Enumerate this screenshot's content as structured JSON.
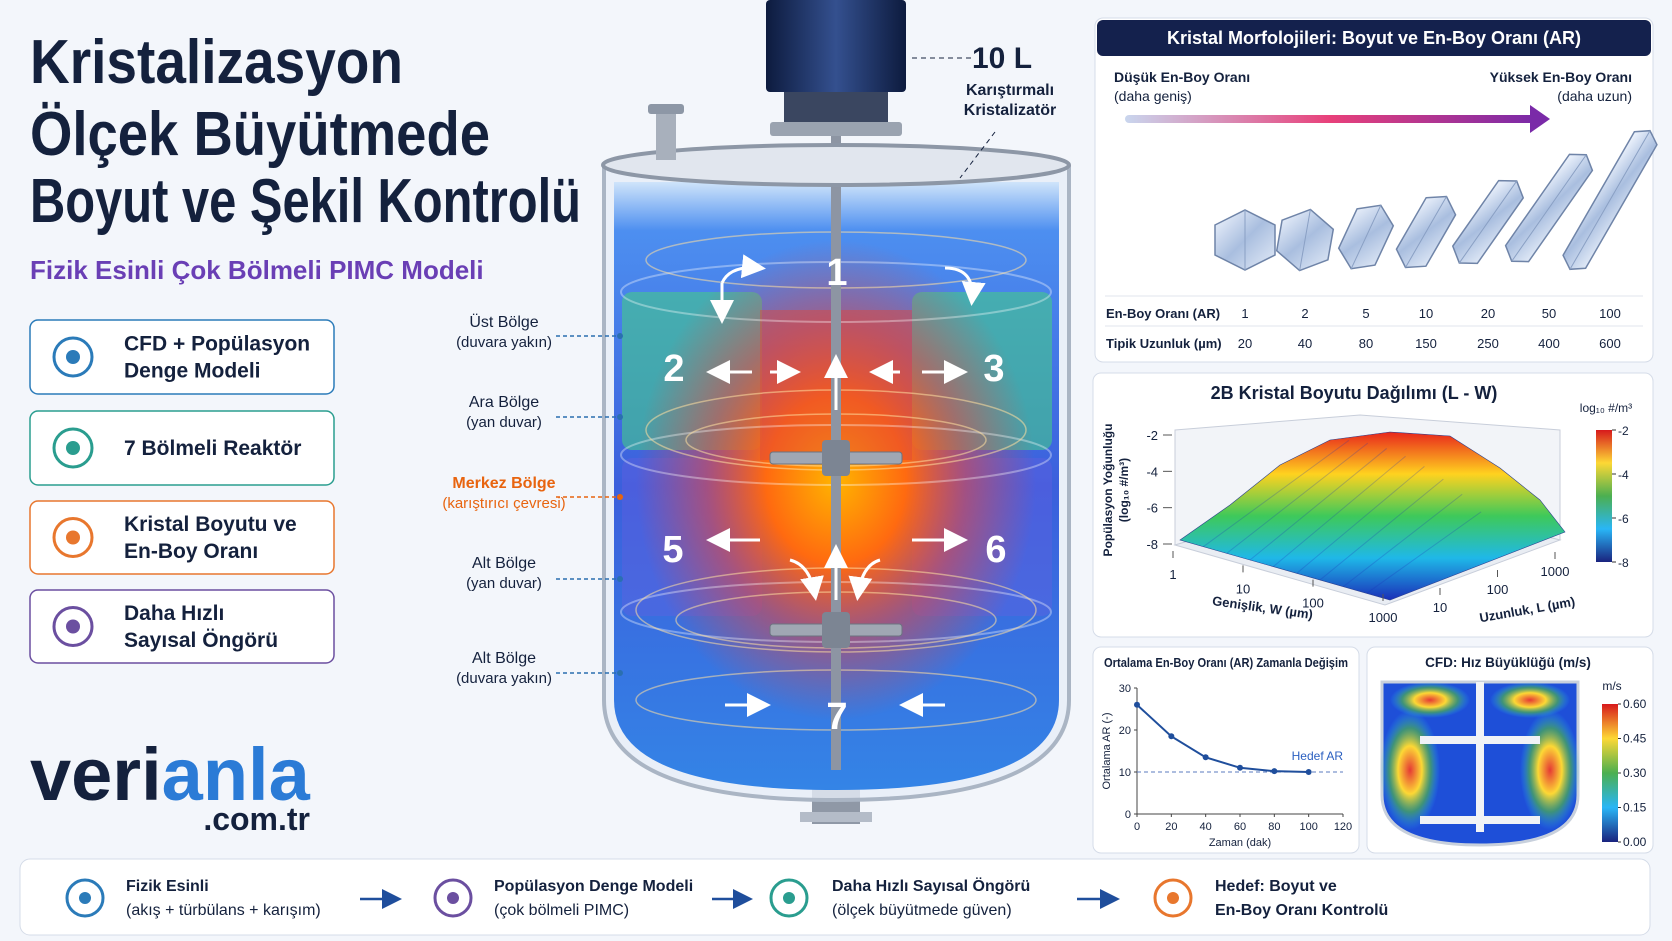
{
  "header": {
    "title_lines": [
      "Kristalizasyon",
      "Ölçek Büyütmede",
      "Boyut ve Şekil Kontrolü"
    ],
    "subtitle": "Fizik Esinli Çok Bölmeli PIMC Modeli"
  },
  "features": [
    {
      "lines": [
        "CFD + Popülasyon",
        "Denge Modeli"
      ]
    },
    {
      "lines": [
        "7 Bölmeli Reaktör"
      ]
    },
    {
      "lines": [
        "Kristal Boyutu ve",
        "En-Boy Oranı"
      ]
    },
    {
      "lines": [
        "Daha Hızlı",
        "Sayısal Öngörü"
      ]
    }
  ],
  "logo": {
    "part1": "veri",
    "part2": "anla",
    "domain": ".com.tr"
  },
  "reactor": {
    "volume": "10 L",
    "caption_lines": [
      "Karıştırmalı",
      "Kristalizatör"
    ],
    "zone_numbers": [
      "1",
      "2",
      "3",
      "5",
      "6",
      "7"
    ],
    "zone_labels": [
      {
        "name": "Üst Bölge",
        "note": "(duvara yakın)"
      },
      {
        "name": "Ara Bölge",
        "note": "(yan duvar)"
      },
      {
        "name": "Merkez Bölge",
        "note": "(karıştırıcı çevresi)"
      },
      {
        "name": "Alt Bölge",
        "note": "(yan duvar)"
      },
      {
        "name": "Alt Bölge",
        "note": "(duvara yakın)"
      }
    ]
  },
  "morphology": {
    "title": "Kristal Morfolojileri: Boyut ve En-Boy Oranı (AR)",
    "low": {
      "label": "Düşük En-Boy Oranı",
      "note": "(daha geniş)"
    },
    "high": {
      "label": "Yüksek En-Boy Oranı",
      "note": "(daha uzun)"
    },
    "table": {
      "rows": [
        [
          "En-Boy Oranı (AR)",
          1,
          2,
          5,
          10,
          20,
          50,
          100
        ],
        [
          "Tipik Uzunluk (µm)",
          20,
          40,
          80,
          150,
          250,
          400,
          600
        ]
      ]
    }
  },
  "surface_chart": {
    "title": "2B Kristal Boyutu Dağılımı (L - W)",
    "z_label_lines": [
      "Popülasyon Yoğunluğu",
      "(log₁₀ #/m³)"
    ],
    "zlim": [
      -8,
      -2
    ],
    "zticks": [
      -2,
      -4,
      -6,
      -8
    ],
    "x_label": "Genişlik, W (µm)",
    "xlim": [
      1,
      1000
    ],
    "xticks": [
      1,
      10,
      100,
      1000
    ],
    "y_label": "Uzunluk, L (µm)",
    "ylim": [
      10,
      1000
    ],
    "yticks": [
      10,
      100,
      1000
    ],
    "log_scale": true,
    "colorbar_title": "log₁₀ #/m³",
    "colorbar_lim": [
      -8,
      -2
    ],
    "colorbar_ticks": [
      -2,
      -4,
      -6,
      -8
    ]
  },
  "chart_data": {
    "type": "line",
    "title": "Ortalama En-Boy Oranı (AR) Zamanla Değişim",
    "x_label": "Zaman (dak)",
    "y_label": "Ortalama AR (-)",
    "x": [
      0,
      20,
      40,
      60,
      80,
      100
    ],
    "values": [
      26,
      18.5,
      13.5,
      11,
      10.2,
      10
    ],
    "color": "#1f4e9c",
    "xlim": [
      0,
      120
    ],
    "ylim": [
      0,
      30
    ],
    "xticks": [
      0,
      20,
      40,
      60,
      80,
      100,
      120
    ],
    "yticks": [
      0,
      10,
      20,
      30
    ],
    "target": {
      "value": 10,
      "label": "Hedef AR"
    }
  },
  "cfd": {
    "title": "CFD: Hız Büyüklüğü (m/s)",
    "unit": "m/s",
    "colorbar_lim": [
      0,
      0.6
    ],
    "colorbar_ticks": [
      {
        "value": 0.6,
        "label": "0.60"
      },
      {
        "value": 0.45,
        "label": "0.45"
      },
      {
        "value": 0.3,
        "label": "0.30"
      },
      {
        "value": 0.15,
        "label": "0.15"
      },
      {
        "value": 0,
        "label": "0.00"
      }
    ]
  },
  "footer": [
    {
      "title": "Fizik Esinli",
      "note": "(akış + türbülans + karışım)"
    },
    {
      "title": "Popülasyon Denge Modeli",
      "note": "(çok bölmeli PIMC)"
    },
    {
      "title": "Daha Hızlı Sayısal Öngörü",
      "note": "(ölçek büyütmede güven)"
    },
    {
      "title": "Hedef: Boyut ve",
      "note": "En-Boy Oranı Kontrolü"
    }
  ]
}
